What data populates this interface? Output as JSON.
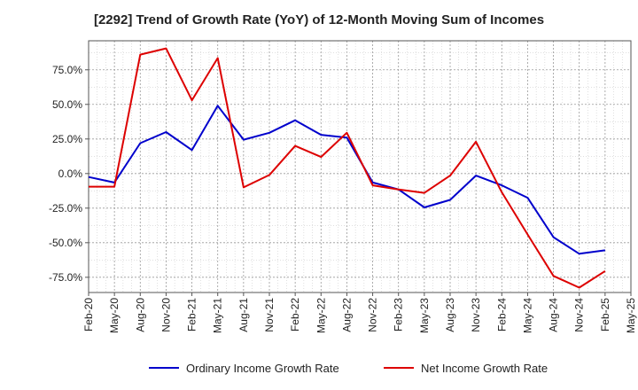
{
  "chart_data": {
    "type": "line",
    "title": "[2292]  Trend of Growth Rate (YoY) of 12-Month Moving Sum of Incomes",
    "xlabel": "",
    "ylabel": "",
    "x_ticks": [
      "Feb-20",
      "May-20",
      "Aug-20",
      "Nov-20",
      "Feb-21",
      "May-21",
      "Aug-21",
      "Nov-21",
      "Feb-22",
      "May-22",
      "Aug-22",
      "Nov-22",
      "Feb-23",
      "May-23",
      "Aug-23",
      "Nov-23",
      "Feb-24",
      "May-24",
      "Aug-24",
      "Nov-24",
      "Feb-25",
      "May-25"
    ],
    "y_ticks": [
      "75.0%",
      "50.0%",
      "25.0%",
      "0.0%",
      "-25.0%",
      "-50.0%",
      "-75.0%"
    ],
    "y_tick_values": [
      75,
      50,
      25,
      0,
      -25,
      -50,
      -75
    ],
    "ylim": [
      -86,
      96
    ],
    "x": [
      "2020-02",
      "2020-05",
      "2020-08",
      "2020-11",
      "2021-02",
      "2021-05",
      "2021-08",
      "2021-11",
      "2022-02",
      "2022-05",
      "2022-08",
      "2022-11",
      "2023-02",
      "2023-05",
      "2023-08",
      "2023-11",
      "2024-02",
      "2024-05",
      "2024-08",
      "2024-11",
      "2025-02",
      "2025-05"
    ],
    "grid": true,
    "legend_position": "bottom",
    "series": [
      {
        "name": "Ordinary Income Growth Rate",
        "color": "#0000cc",
        "values": [
          -2.5,
          -6.5,
          22,
          30,
          17,
          49,
          24.5,
          29.5,
          38.5,
          28,
          26,
          -6.5,
          -11.5,
          -24.5,
          -19,
          -1.5,
          -8.5,
          -17.5,
          -46,
          -58,
          -55.5,
          null
        ]
      },
      {
        "name": "Net Income Growth Rate",
        "color": "#dd0000",
        "values": [
          -9.5,
          -9.5,
          86,
          90.5,
          53,
          83.5,
          -10,
          -1,
          20,
          12,
          29.5,
          -8.5,
          -11.5,
          -14,
          -1.5,
          23,
          -13.5,
          -44,
          -74,
          -82.5,
          -70.5,
          null
        ]
      }
    ]
  }
}
